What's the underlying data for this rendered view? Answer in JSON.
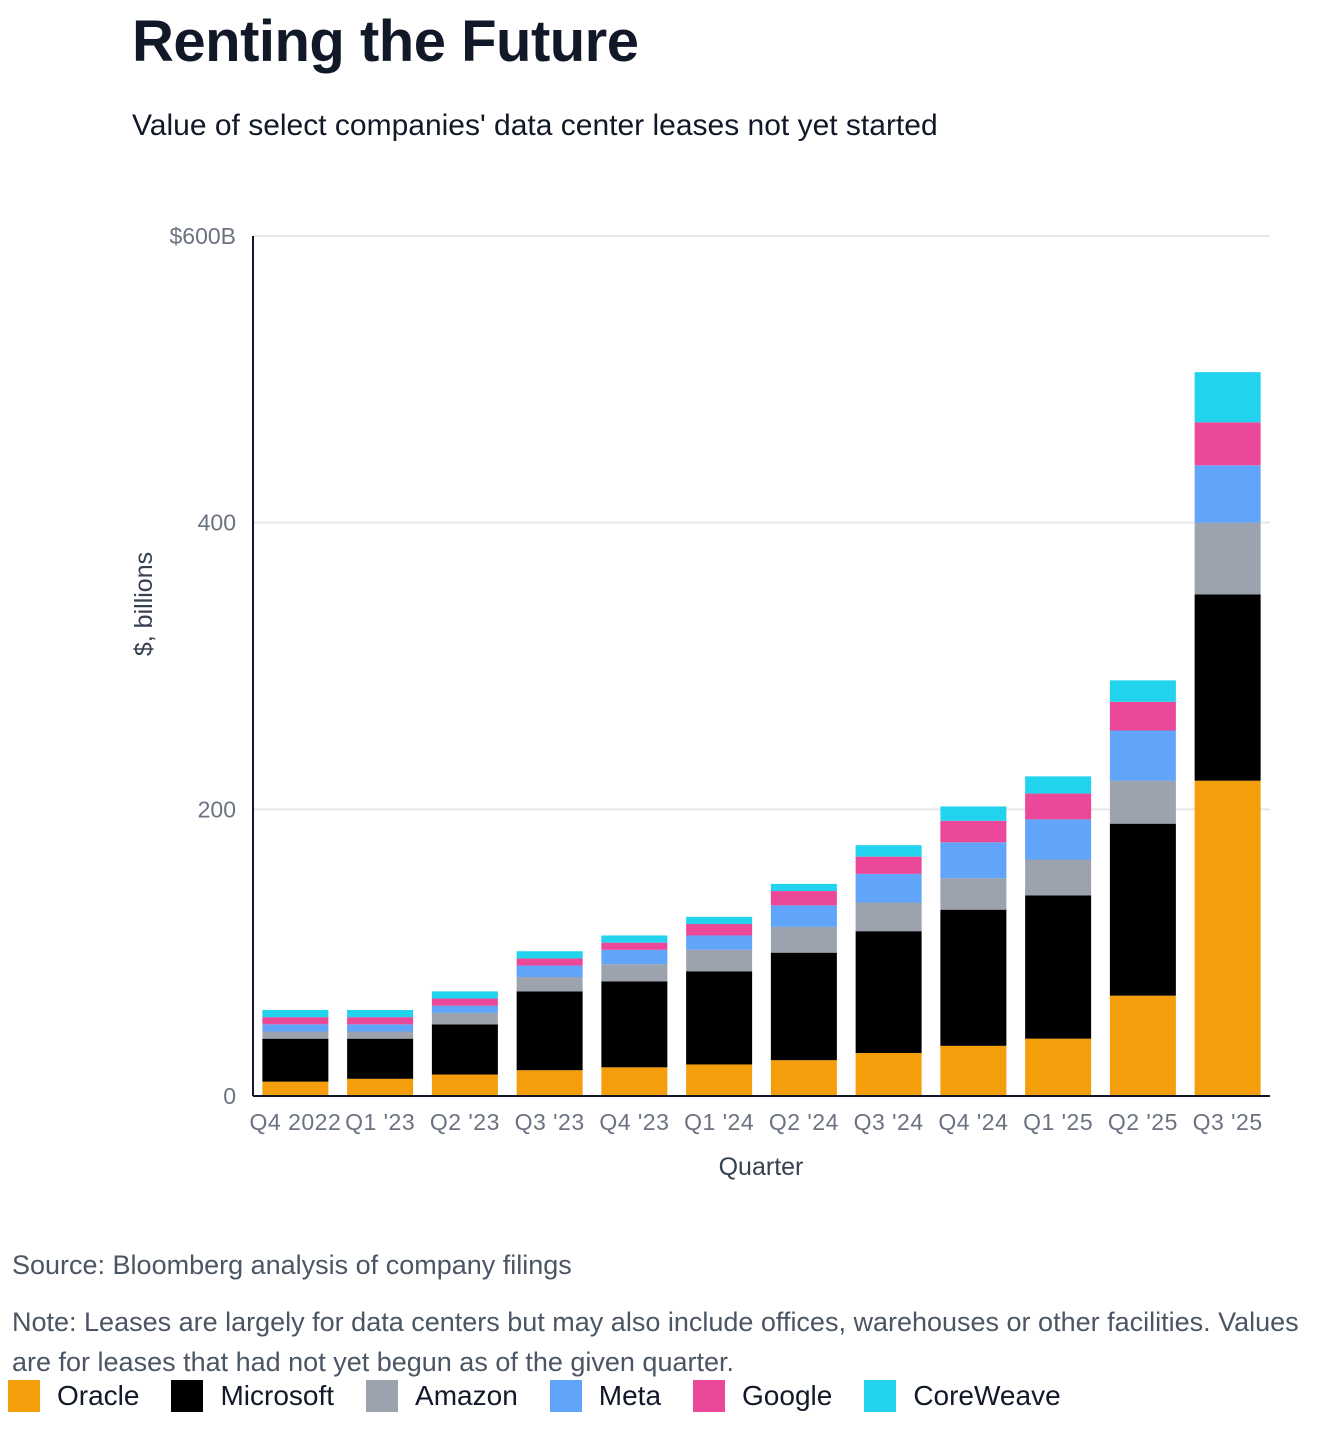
{
  "header": {
    "title": "Renting the Future",
    "subtitle": "Value of select companies' data center leases not yet started"
  },
  "footer": {
    "source": "Source: Bloomberg analysis of company filings",
    "note": "Note: Leases are largely for data centers but may also include offices, warehouses or other facilities. Values are for leases that had not yet begun as of the given quarter."
  },
  "chart_data": {
    "type": "bar",
    "stacked": true,
    "title": "Renting the Future",
    "subtitle": "Value of select companies' data center leases not yet started",
    "xlabel": "Quarter",
    "ylabel": "$, billions",
    "ylim": [
      0,
      600
    ],
    "yticks": [
      {
        "value": 0,
        "label": "0"
      },
      {
        "value": 200,
        "label": "200"
      },
      {
        "value": 400,
        "label": "400"
      },
      {
        "value": 600,
        "label": "$600B"
      }
    ],
    "grid": true,
    "legend_position": "bottom",
    "categories": [
      "Q4 2022",
      "Q1 '23",
      "Q2 '23",
      "Q3 '23",
      "Q4 '23",
      "Q1 '24",
      "Q2 '24",
      "Q3 '24",
      "Q4 '24",
      "Q1 '25",
      "Q2 '25",
      "Q3 '25"
    ],
    "series": [
      {
        "name": "Oracle",
        "color": "#f59e0b",
        "values": [
          10,
          12,
          15,
          18,
          20,
          22,
          25,
          30,
          35,
          40,
          70,
          220
        ]
      },
      {
        "name": "Microsoft",
        "color": "#000000",
        "values": [
          30,
          28,
          35,
          55,
          60,
          65,
          75,
          85,
          95,
          100,
          120,
          130
        ]
      },
      {
        "name": "Amazon",
        "color": "#9ca3af",
        "values": [
          5,
          5,
          8,
          10,
          12,
          15,
          18,
          20,
          22,
          25,
          30,
          50
        ]
      },
      {
        "name": "Meta",
        "color": "#60a5fa",
        "values": [
          5,
          5,
          5,
          8,
          10,
          10,
          15,
          20,
          25,
          28,
          35,
          40
        ]
      },
      {
        "name": "Google",
        "color": "#ec4899",
        "values": [
          5,
          5,
          5,
          5,
          5,
          8,
          10,
          12,
          15,
          18,
          20,
          30
        ]
      },
      {
        "name": "CoreWeave",
        "color": "#22d3ee",
        "values": [
          5,
          5,
          5,
          5,
          5,
          5,
          5,
          8,
          10,
          12,
          15,
          35
        ]
      }
    ]
  }
}
